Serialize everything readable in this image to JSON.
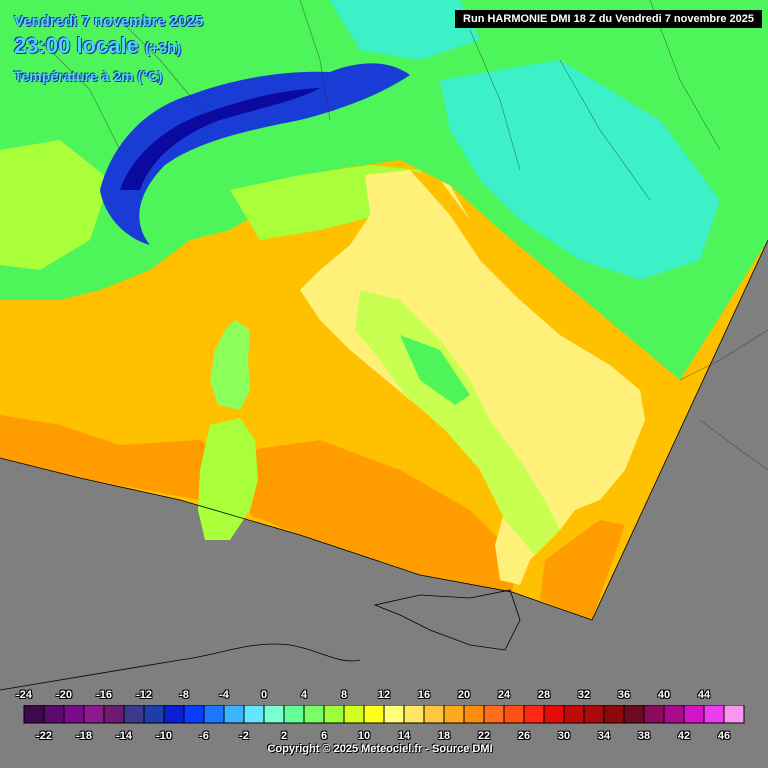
{
  "header": {
    "date": "Vendredi 7 novembre 2025",
    "time": "23:00 locale",
    "time_offset": "(+3h)",
    "variable": "Température à 2m (°C)",
    "run": "Run HARMONIE DMI 18 Z du Vendredi 7 novembre 2025"
  },
  "legend": {
    "top_labels": [
      "-24",
      "-20",
      "-16",
      "-12",
      "-8",
      "-4",
      "0",
      "4",
      "8",
      "12",
      "16",
      "20",
      "24",
      "28",
      "32",
      "36",
      "40",
      "44"
    ],
    "bottom_labels": [
      "-22",
      "-18",
      "-14",
      "-10",
      "-6",
      "-2",
      "2",
      "6",
      "10",
      "14",
      "18",
      "22",
      "26",
      "30",
      "34",
      "38",
      "42",
      "46"
    ],
    "colors": [
      "#3c0a4a",
      "#5a0a6e",
      "#7a0a8c",
      "#8c1a8c",
      "#6e1a6e",
      "#3a3a8c",
      "#1e3caa",
      "#0a1ed2",
      "#0a3cff",
      "#1e78ff",
      "#3cb4ff",
      "#64e6ff",
      "#78ffd2",
      "#64ff96",
      "#78ff64",
      "#a0ff3c",
      "#d2ff1e",
      "#ffff1e",
      "#ffff78",
      "#ffe664",
      "#ffc83c",
      "#ffaa1e",
      "#ff8c0a",
      "#ff6e1e",
      "#ff5014",
      "#ff2814",
      "#e60a0a",
      "#be0a0a",
      "#aa0a0a",
      "#8c0a0a",
      "#6e0a1e",
      "#8c0a5a",
      "#aa0a8c",
      "#d214c8",
      "#f03cf0",
      "#f896f0"
    ]
  },
  "map": {
    "colors": {
      "sea": "#ffc000",
      "sea_warm": "#ff9c00",
      "outside": "#7f7f7f",
      "land_low": "#fff07a",
      "land_mid": "#d6ff3a",
      "land_green": "#4df45a",
      "land_cold": "#3cf0c8",
      "alps": "#1a3cd6",
      "alps_deep": "#0a0aa0"
    }
  },
  "footer": {
    "copyright": "Copyright © 2025 Meteociel.fr - Source DMI"
  }
}
